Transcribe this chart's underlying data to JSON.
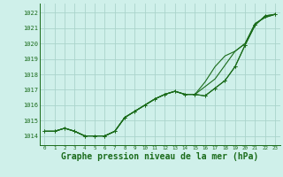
{
  "bg_color": "#cff0ea",
  "grid_color": "#aad4cc",
  "line_color": "#1a6b1a",
  "xlabel": "Graphe pression niveau de la mer (hPa)",
  "xlabel_fontsize": 7,
  "xlim": [
    -0.5,
    23.5
  ],
  "ylim": [
    1013.4,
    1022.6
  ],
  "yticks": [
    1014,
    1015,
    1016,
    1017,
    1018,
    1019,
    1020,
    1021,
    1022
  ],
  "xticks": [
    0,
    1,
    2,
    3,
    4,
    5,
    6,
    7,
    8,
    9,
    10,
    11,
    12,
    13,
    14,
    15,
    16,
    17,
    18,
    19,
    20,
    21,
    22,
    23
  ],
  "series_with_markers": [
    [
      1014.3,
      1014.3,
      1014.5,
      1014.3,
      1014.0,
      1014.0,
      1014.0,
      1014.3,
      1015.2,
      1015.6,
      1016.0,
      1016.4,
      1016.7,
      1016.9,
      1016.7,
      1016.7,
      1016.6,
      1017.1,
      1017.6,
      1018.5,
      1019.9,
      1021.2,
      1021.8,
      1021.9
    ],
    [
      1014.3,
      1014.3,
      1014.5,
      1014.3,
      1014.0,
      1014.0,
      1014.0,
      1014.3,
      1015.2,
      1015.6,
      1016.0,
      1016.4,
      1016.7,
      1016.9,
      1016.7,
      1016.7,
      1016.6,
      1017.1,
      1017.6,
      1018.5,
      1019.9,
      1021.2,
      1021.8,
      1021.9
    ]
  ],
  "series_no_markers": [
    [
      1014.3,
      1014.3,
      1014.5,
      1014.3,
      1014.0,
      1014.0,
      1014.0,
      1014.3,
      1015.2,
      1015.6,
      1016.0,
      1016.4,
      1016.7,
      1016.9,
      1016.7,
      1016.7,
      1017.2,
      1017.7,
      1018.6,
      1019.5,
      1020.0,
      1021.3,
      1021.7,
      1021.9
    ],
    [
      1014.3,
      1014.3,
      1014.5,
      1014.3,
      1014.0,
      1014.0,
      1014.0,
      1014.3,
      1015.2,
      1015.6,
      1016.0,
      1016.4,
      1016.7,
      1016.9,
      1016.7,
      1016.7,
      1017.5,
      1018.5,
      1019.2,
      1019.5,
      1020.0,
      1021.3,
      1021.7,
      1021.9
    ]
  ]
}
